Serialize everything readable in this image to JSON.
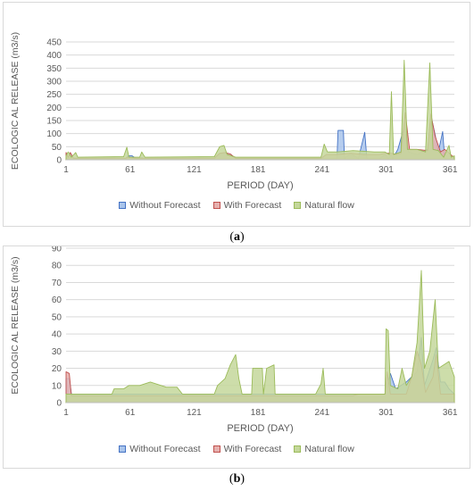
{
  "charts": [
    {
      "caption_open": "(",
      "caption_letter": "a",
      "caption_close": ")"
    },
    {
      "caption_open": "(",
      "caption_letter": "b",
      "caption_close": ")"
    }
  ],
  "chart_data": [
    {
      "type": "area",
      "title": "",
      "xlabel": "PERIOD (DAY)",
      "ylabel": "ECOLOGIC AL RELEASE (m3/s)",
      "xlim": [
        1,
        365
      ],
      "ylim": [
        0,
        450
      ],
      "xticks": [
        1,
        61,
        121,
        181,
        241,
        301,
        361
      ],
      "yticks": [
        0,
        50,
        100,
        150,
        200,
        250,
        300,
        350,
        400,
        450
      ],
      "grid": "horizontal",
      "legend_position": "bottom",
      "series": [
        {
          "name": "Without Forecast",
          "color": "#4472c4",
          "fill": "#a9c4eb",
          "points": [
            [
              1,
              25
            ],
            [
              3,
              8
            ],
            [
              5,
              25
            ],
            [
              8,
              4
            ],
            [
              12,
              4
            ],
            [
              57,
              4
            ],
            [
              59,
              15
            ],
            [
              63,
              15
            ],
            [
              67,
              4
            ],
            [
              72,
              8
            ],
            [
              75,
              4
            ],
            [
              140,
              4
            ],
            [
              145,
              22
            ],
            [
              150,
              25
            ],
            [
              155,
              22
            ],
            [
              160,
              4
            ],
            [
              255,
              4
            ],
            [
              256,
              112
            ],
            [
              261,
              112
            ],
            [
              262,
              4
            ],
            [
              268,
              25
            ],
            [
              275,
              4
            ],
            [
              281,
              105
            ],
            [
              283,
              4
            ],
            [
              295,
              4
            ],
            [
              300,
              20
            ],
            [
              303,
              4
            ],
            [
              306,
              20
            ],
            [
              307,
              4
            ],
            [
              312,
              40
            ],
            [
              318,
              125
            ],
            [
              322,
              30
            ],
            [
              330,
              20
            ],
            [
              340,
              40
            ],
            [
              343,
              170
            ],
            [
              347,
              95
            ],
            [
              350,
              30
            ],
            [
              354,
              108
            ],
            [
              356,
              4
            ],
            [
              365,
              4
            ]
          ]
        },
        {
          "name": "With Forecast",
          "color": "#c0504d",
          "fill": "#e6b0ae",
          "points": [
            [
              1,
              28
            ],
            [
              3,
              10
            ],
            [
              5,
              28
            ],
            [
              8,
              6
            ],
            [
              12,
              6
            ],
            [
              57,
              6
            ],
            [
              59,
              10
            ],
            [
              65,
              6
            ],
            [
              72,
              6
            ],
            [
              75,
              6
            ],
            [
              140,
              6
            ],
            [
              145,
              25
            ],
            [
              150,
              28
            ],
            [
              155,
              22
            ],
            [
              160,
              6
            ],
            [
              240,
              6
            ],
            [
              245,
              20
            ],
            [
              255,
              20
            ],
            [
              260,
              22
            ],
            [
              268,
              25
            ],
            [
              280,
              20
            ],
            [
              295,
              20
            ],
            [
              300,
              25
            ],
            [
              306,
              25
            ],
            [
              310,
              20
            ],
            [
              315,
              25
            ],
            [
              319,
              180
            ],
            [
              323,
              40
            ],
            [
              330,
              40
            ],
            [
              340,
              35
            ],
            [
              343,
              175
            ],
            [
              347,
              90
            ],
            [
              352,
              30
            ],
            [
              356,
              40
            ],
            [
              365,
              8
            ]
          ]
        },
        {
          "name": "Natural flow",
          "color": "#9bbb59",
          "fill": "#c4d79b",
          "points": [
            [
              1,
              15
            ],
            [
              3,
              30
            ],
            [
              6,
              10
            ],
            [
              10,
              28
            ],
            [
              12,
              10
            ],
            [
              55,
              12
            ],
            [
              58,
              48
            ],
            [
              60,
              10
            ],
            [
              70,
              10
            ],
            [
              72,
              30
            ],
            [
              75,
              10
            ],
            [
              140,
              12
            ],
            [
              145,
              50
            ],
            [
              149,
              55
            ],
            [
              152,
              20
            ],
            [
              160,
              10
            ],
            [
              240,
              10
            ],
            [
              243,
              60
            ],
            [
              246,
              30
            ],
            [
              255,
              30
            ],
            [
              270,
              35
            ],
            [
              290,
              30
            ],
            [
              300,
              30
            ],
            [
              304,
              20
            ],
            [
              306,
              260
            ],
            [
              308,
              20
            ],
            [
              315,
              30
            ],
            [
              318,
              380
            ],
            [
              321,
              40
            ],
            [
              330,
              40
            ],
            [
              338,
              30
            ],
            [
              342,
              370
            ],
            [
              345,
              40
            ],
            [
              350,
              35
            ],
            [
              355,
              10
            ],
            [
              360,
              55
            ],
            [
              362,
              10
            ],
            [
              365,
              15
            ]
          ]
        }
      ]
    },
    {
      "type": "area",
      "title": "",
      "xlabel": "PERIOD (DAY)",
      "ylabel": "ECOLOGIC AL RELEASE (m3/s)",
      "xlim": [
        1,
        365
      ],
      "ylim": [
        0,
        90
      ],
      "xticks": [
        1,
        61,
        121,
        181,
        241,
        301,
        361
      ],
      "yticks": [
        0,
        10,
        20,
        30,
        40,
        50,
        60,
        70,
        80,
        90
      ],
      "grid": "horizontal",
      "legend_position": "bottom",
      "series": [
        {
          "name": "Without Forecast",
          "color": "#4472c4",
          "fill": "#a9c4eb",
          "points": [
            [
              1,
              14
            ],
            [
              4,
              14
            ],
            [
              6,
              5
            ],
            [
              270,
              5
            ],
            [
              275,
              5
            ],
            [
              300,
              5
            ],
            [
              305,
              17
            ],
            [
              310,
              8
            ],
            [
              320,
              12
            ],
            [
              330,
              18
            ],
            [
              334,
              38
            ],
            [
              337,
              10
            ],
            [
              345,
              25
            ],
            [
              348,
              32
            ],
            [
              352,
              12
            ],
            [
              356,
              12
            ],
            [
              360,
              8
            ],
            [
              365,
              5
            ]
          ]
        },
        {
          "name": "With Forecast",
          "color": "#c0504d",
          "fill": "#e6b0ae",
          "points": [
            [
              1,
              18
            ],
            [
              4,
              17
            ],
            [
              6,
              4
            ],
            [
              270,
              4
            ],
            [
              275,
              5
            ],
            [
              300,
              5
            ],
            [
              302,
              18
            ],
            [
              305,
              5
            ],
            [
              320,
              5
            ],
            [
              325,
              15
            ],
            [
              330,
              30
            ],
            [
              334,
              22
            ],
            [
              338,
              6
            ],
            [
              345,
              15
            ],
            [
              348,
              28
            ],
            [
              352,
              5
            ],
            [
              365,
              5
            ]
          ]
        },
        {
          "name": "Natural flow",
          "color": "#9bbb59",
          "fill": "#c4d79b",
          "points": [
            [
              1,
              5
            ],
            [
              44,
              5
            ],
            [
              46,
              8
            ],
            [
              55,
              8
            ],
            [
              60,
              10
            ],
            [
              70,
              10
            ],
            [
              80,
              12
            ],
            [
              95,
              9
            ],
            [
              105,
              9
            ],
            [
              110,
              5
            ],
            [
              140,
              5
            ],
            [
              143,
              10
            ],
            [
              150,
              14
            ],
            [
              155,
              22
            ],
            [
              160,
              28
            ],
            [
              163,
              14
            ],
            [
              166,
              5
            ],
            [
              175,
              5
            ],
            [
              176,
              20
            ],
            [
              185,
              20
            ],
            [
              186,
              5
            ],
            [
              189,
              20
            ],
            [
              196,
              22
            ],
            [
              197,
              5
            ],
            [
              235,
              5
            ],
            [
              240,
              11
            ],
            [
              242,
              20
            ],
            [
              244,
              5
            ],
            [
              270,
              5
            ],
            [
              300,
              5
            ],
            [
              301,
              43
            ],
            [
              303,
              42
            ],
            [
              305,
              10
            ],
            [
              312,
              8
            ],
            [
              316,
              20
            ],
            [
              320,
              10
            ],
            [
              325,
              15
            ],
            [
              330,
              35
            ],
            [
              334,
              77
            ],
            [
              337,
              20
            ],
            [
              342,
              30
            ],
            [
              347,
              60
            ],
            [
              350,
              20
            ],
            [
              355,
              22
            ],
            [
              360,
              24
            ],
            [
              365,
              15
            ]
          ]
        }
      ]
    }
  ]
}
